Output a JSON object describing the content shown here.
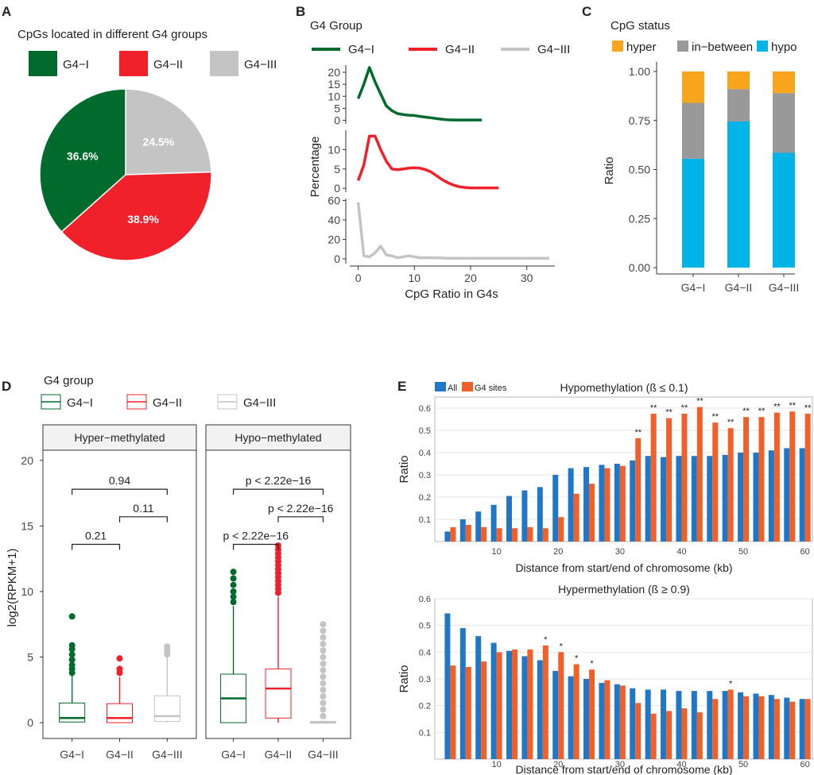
{
  "chart_data": [
    {
      "id": "A",
      "type": "pie",
      "panel_label": "A",
      "title": "CpGs located in different G4 groups",
      "categories": [
        "G4−I",
        "G4−II",
        "G4−III"
      ],
      "values": [
        36.6,
        38.9,
        24.5
      ],
      "value_labels": [
        "36.6%",
        "38.9%",
        "24.5%"
      ],
      "colors": [
        "#006b2d",
        "#f0212b",
        "#c4c4c4"
      ]
    },
    {
      "id": "B",
      "type": "line",
      "panel_label": "B",
      "legend_title": "G4 Group",
      "xlabel": "CpG Ratio in G4s",
      "ylabel": "Percentage",
      "xlim": [
        -1.5,
        35
      ],
      "x_ticks": [
        0,
        10,
        20,
        30
      ],
      "series": [
        {
          "name": "G4−I",
          "color": "#006b2d",
          "ylim": [
            -1.5,
            23
          ],
          "y_ticks": [
            0,
            5,
            10,
            15,
            20
          ],
          "x": [
            0,
            1,
            2,
            3,
            4,
            5,
            6,
            7,
            8,
            9,
            10,
            11,
            12,
            13,
            14,
            15,
            16,
            17,
            18,
            19,
            20,
            21,
            22
          ],
          "y": [
            9,
            15,
            22,
            16,
            11,
            6,
            4,
            2.8,
            2.4,
            2.1,
            2.0,
            1.6,
            1.3,
            1.0,
            0.7,
            0.4,
            0.2,
            0.1,
            0.1,
            0.1,
            0.1,
            0.1,
            0.1
          ]
        },
        {
          "name": "G4−II",
          "color": "#f0212b",
          "ylim": [
            -1,
            15
          ],
          "y_ticks": [
            0,
            5,
            10
          ],
          "x": [
            0,
            1,
            2,
            3,
            4,
            5,
            6,
            7,
            8,
            9,
            10,
            11,
            12,
            13,
            14,
            15,
            16,
            17,
            18,
            19,
            20,
            21,
            22,
            23,
            24,
            25
          ],
          "y": [
            2,
            6,
            13.5,
            13.5,
            10,
            7,
            5,
            4.8,
            5,
            5.2,
            5.3,
            5.2,
            4.8,
            4.2,
            3.2,
            2.2,
            1.4,
            0.8,
            0.4,
            0.2,
            0.1,
            0.1,
            0.1,
            0.1,
            0.1,
            0.1
          ]
        },
        {
          "name": "G4−III",
          "color": "#c4c4c4",
          "ylim": [
            -5,
            62
          ],
          "y_ticks": [
            0,
            20,
            40,
            60
          ],
          "x": [
            0,
            1,
            2,
            3,
            4,
            5,
            6,
            7,
            8,
            9,
            10,
            11,
            12,
            13,
            14,
            16,
            18,
            20,
            22,
            24,
            26,
            28,
            30,
            32,
            34
          ],
          "y": [
            58,
            3,
            2,
            6,
            13,
            4,
            3,
            1,
            2,
            3,
            2,
            1,
            1,
            1,
            1,
            0.5,
            0.5,
            0.5,
            0.5,
            0.5,
            0.5,
            0.5,
            0.5,
            0.5,
            0.5
          ]
        }
      ]
    },
    {
      "id": "C",
      "type": "bar",
      "panel_label": "C",
      "legend_title": "CpG status",
      "ylabel": "Ratio",
      "ylim": [
        0,
        1
      ],
      "y_ticks": [
        "0.00",
        "0.25",
        "0.50",
        "0.75",
        "1.00"
      ],
      "categories": [
        "G4−I",
        "G4−II",
        "G4−III"
      ],
      "series": [
        {
          "name": "hypo",
          "color": "#00b4e8",
          "values": [
            0.555,
            0.745,
            0.585
          ]
        },
        {
          "name": "in−between",
          "color": "#999999",
          "values": [
            0.285,
            0.165,
            0.305
          ]
        },
        {
          "name": "hyper",
          "color": "#f7a51c",
          "values": [
            0.16,
            0.09,
            0.11
          ]
        }
      ]
    },
    {
      "id": "D",
      "type": "box",
      "panel_label": "D",
      "legend_title": "G4 group",
      "ylabel": "log2(RPKM+1)",
      "ylim": [
        -0.6,
        21.5
      ],
      "y_ticks": [
        0,
        5,
        10,
        15,
        20
      ],
      "categories": [
        "G4−I",
        "G4−II",
        "G4−III"
      ],
      "colors": [
        "#006b2d",
        "#f0212b",
        "#c4c4c4"
      ],
      "facets": [
        {
          "title": "Hyper−methylated",
          "boxes": [
            {
              "q1": 0.05,
              "median": 0.35,
              "q3": 1.5,
              "wlo": 0,
              "whi": 3.6,
              "outliers": [
                3.8,
                4.1,
                4.4,
                4.8,
                5.2,
                5.6,
                5.9,
                8.1
              ]
            },
            {
              "q1": 0.0,
              "median": 0.35,
              "q3": 1.45,
              "wlo": 0,
              "whi": 3.5,
              "outliers": [
                3.8,
                4.1,
                4.9
              ]
            },
            {
              "q1": 0.1,
              "median": 0.5,
              "q3": 2.05,
              "wlo": 0,
              "whi": 5.0,
              "outliers": [
                5.2,
                5.4,
                5.6,
                5.8
              ]
            }
          ],
          "comparisons": [
            {
              "a": 0,
              "b": 2,
              "label": "0.94",
              "y": 17.8
            },
            {
              "a": 1,
              "b": 2,
              "label": "0.11",
              "y": 15.7
            },
            {
              "a": 0,
              "b": 1,
              "label": "0.21",
              "y": 13.6
            }
          ]
        },
        {
          "title": "Hypo−methylated",
          "boxes": [
            {
              "q1": 0.0,
              "median": 1.85,
              "q3": 3.7,
              "wlo": 0,
              "whi": 8.9,
              "outliers": [
                9.2,
                9.6,
                10.0,
                10.5,
                11.0,
                11.5
              ]
            },
            {
              "q1": 0.35,
              "median": 2.6,
              "q3": 4.1,
              "wlo": 0,
              "whi": 9.6,
              "outliers": [
                9.9,
                10.2,
                10.5,
                10.8,
                11.1,
                11.4,
                11.7,
                12.0,
                12.3,
                12.6,
                12.9,
                13.2,
                13.5
              ]
            },
            {
              "q1": 0.0,
              "median": 0.0,
              "q3": 0.1,
              "wlo": 0,
              "whi": 0.2,
              "outliers": [
                0.5,
                1.0,
                1.5,
                2.0,
                2.5,
                3.0,
                3.5,
                4.0,
                4.5,
                5.0,
                5.5,
                6.0,
                6.5,
                7.0,
                7.5
              ]
            }
          ],
          "comparisons": [
            {
              "a": 0,
              "b": 2,
              "label": "p < 2.22e−16",
              "y": 17.8
            },
            {
              "a": 1,
              "b": 2,
              "label": "p < 2.22e−16",
              "y": 15.7
            },
            {
              "a": 0,
              "b": 1,
              "label": "p < 2.22e−16",
              "y": 13.6
            }
          ]
        }
      ]
    },
    {
      "id": "E",
      "type": "bar",
      "panel_label": "E",
      "legend": [
        "All",
        "G4 sites"
      ],
      "colors": [
        "#1f77c8",
        "#f2602a"
      ],
      "xlabel": "Distance from start/end of chromosome (kb)",
      "ylabel": "Ratio",
      "x_ticks": [
        10,
        20,
        30,
        40,
        50,
        60
      ],
      "subplots": [
        {
          "title": "Hypomethylation (ß ≤ 0.1)",
          "ylim": [
            0,
            0.65
          ],
          "y_ticks": [
            "0.1",
            "0.2",
            "0.3",
            "0.4",
            "0.5",
            "0.6"
          ],
          "x": [
            2.5,
            5,
            7.5,
            10,
            12.5,
            15,
            17.5,
            20,
            22.5,
            25,
            27.5,
            30,
            32.5,
            35,
            37.5,
            40,
            42.5,
            45,
            47.5,
            50,
            52.5,
            55,
            57.5,
            60
          ],
          "all": [
            0.045,
            0.1,
            0.135,
            0.165,
            0.205,
            0.23,
            0.245,
            0.3,
            0.33,
            0.335,
            0.345,
            0.35,
            0.365,
            0.385,
            0.38,
            0.385,
            0.385,
            0.385,
            0.39,
            0.4,
            0.4,
            0.41,
            0.42,
            0.42
          ],
          "g4": [
            0.065,
            0.075,
            0.065,
            0.06,
            0.06,
            0.065,
            0.06,
            0.11,
            0.215,
            0.26,
            0.33,
            0.34,
            0.465,
            0.575,
            0.555,
            0.575,
            0.605,
            0.535,
            0.51,
            0.56,
            0.56,
            0.58,
            0.585,
            0.575
          ],
          "annotations": [
            "",
            "",
            "",
            "",
            "",
            "",
            "",
            "",
            "",
            "",
            "",
            "",
            "**",
            "**",
            "**",
            "**",
            "**",
            "**",
            "**",
            "**",
            "**",
            "**",
            "**",
            "**"
          ]
        },
        {
          "title": "Hypermethylation (ß ≥ 0.9)",
          "ylim": [
            0,
            0.6
          ],
          "y_ticks": [
            "0.1",
            "0.2",
            "0.3",
            "0.4",
            "0.5",
            "0.6"
          ],
          "x": [
            2.5,
            5,
            7.5,
            10,
            12.5,
            15,
            17.5,
            20,
            22.5,
            25,
            27.5,
            30,
            32.5,
            35,
            37.5,
            40,
            42.5,
            45,
            47.5,
            50,
            52.5,
            55,
            57.5,
            60
          ],
          "all": [
            0.545,
            0.49,
            0.46,
            0.435,
            0.405,
            0.385,
            0.37,
            0.33,
            0.31,
            0.3,
            0.285,
            0.28,
            0.265,
            0.26,
            0.26,
            0.255,
            0.255,
            0.255,
            0.255,
            0.25,
            0.245,
            0.24,
            0.23,
            0.225
          ],
          "g4": [
            0.35,
            0.345,
            0.365,
            0.4,
            0.41,
            0.41,
            0.425,
            0.4,
            0.355,
            0.335,
            0.295,
            0.275,
            0.21,
            0.17,
            0.18,
            0.19,
            0.175,
            0.225,
            0.26,
            0.235,
            0.235,
            0.225,
            0.215,
            0.225
          ],
          "annotations": [
            "",
            "",
            "",
            "",
            "",
            "",
            "*",
            "*",
            "*",
            "*",
            "",
            "",
            "",
            "",
            "",
            "",
            "",
            "",
            "*",
            "",
            "",
            "",
            "",
            ""
          ]
        }
      ]
    }
  ]
}
